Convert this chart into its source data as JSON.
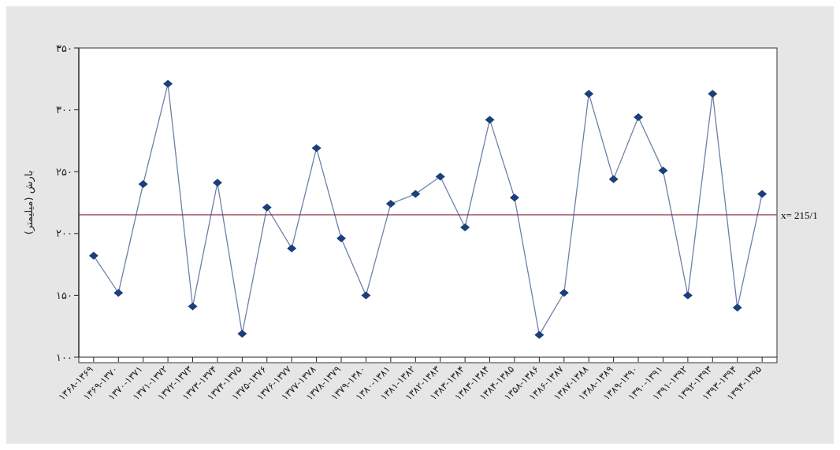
{
  "chart_data": {
    "type": "line",
    "ylabel": "بارش (میلیمتر)",
    "categories": [
      "۱۳۶۸-۱۳۶۹",
      "۱۳۶۹-۱۳۷۰",
      "۱۳۷۰-۱۳۷۱",
      "۱۳۷۱-۱۳۷۲",
      "۱۳۷۲-۱۳۷۳",
      "۱۳۷۳-۱۳۷۴",
      "۱۳۷۴-۱۳۷۵",
      "۱۳۷۵-۱۳۷۶",
      "۱۳۷۶-۱۳۷۷",
      "۱۳۷۷-۱۳۷۸",
      "۱۳۷۸-۱۳۷۹",
      "۱۳۷۹-۱۳۸۰",
      "۱۳۸۰-۱۳۸۱",
      "۱۳۸۱-۱۳۸۲",
      "۱۳۸۲-۱۳۸۳",
      "۱۳۸۳-۱۳۸۴",
      "۱۳۸۳-۱۳۸۴",
      "۱۳۸۴-۱۳۸۵",
      "۱۳۵۸-۱۳۸۶",
      "۱۳۸۶-۱۳۸۷",
      "۱۳۸۷-۱۳۸۸",
      "۱۳۸۸-۱۳۸۹",
      "۱۳۸۹-۱۳۹۰",
      "۱۳۹۰-۱۳۹۱",
      "۱۳۹۱-۱۳۹۲",
      "۱۳۹۲-۱۳۹۳",
      "۱۳۹۳-۱۳۹۴",
      "۱۳۹۴-۱۳۹۵"
    ],
    "series": [
      {
        "color": "#1b3f7a",
        "values": [
          182,
          152,
          240,
          321,
          141,
          241,
          119,
          221,
          188,
          269,
          196,
          150,
          224,
          232,
          246,
          205,
          292,
          229,
          118,
          152,
          313,
          244,
          294,
          251,
          150,
          313,
          140,
          232
        ]
      }
    ],
    "marker": "diamond",
    "line_style": "solid",
    "grid": false,
    "legend": false,
    "ylim": [
      100,
      350
    ],
    "yticks": [
      {
        "value": 100,
        "label": "۱۰۰"
      },
      {
        "value": 150,
        "label": "۱۵۰"
      },
      {
        "value": 200,
        "label": "۲۰۰"
      },
      {
        "value": 250,
        "label": "۲۵۰"
      },
      {
        "value": 300,
        "label": "۳۰۰"
      },
      {
        "value": 350,
        "label": "۳۵۰"
      }
    ],
    "ref_lines": [
      {
        "axis": "y",
        "value": 215.1,
        "label": "x= 215/1",
        "color": "#a0525a"
      }
    ]
  }
}
